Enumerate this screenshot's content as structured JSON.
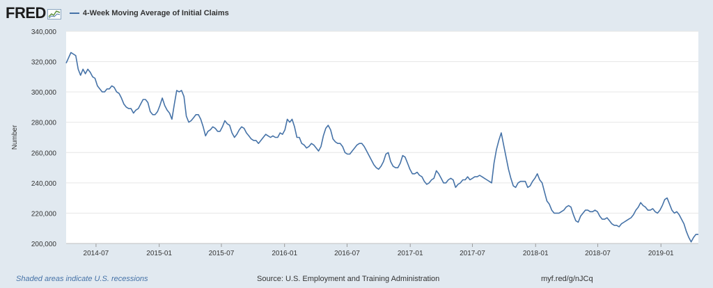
{
  "logo": {
    "text": "FRED",
    "icon": "fred-graph-icon"
  },
  "colors": {
    "series": "#4572a7",
    "background": "#e1e9f0",
    "plot": "#ffffff",
    "grid": "#e6e6e6"
  },
  "footer": {
    "recessions": "Shaded areas indicate U.S. recessions",
    "source": "Source: U.S. Employment and Training Administration",
    "link": "myf.red/g/nJCq"
  },
  "chart_data": {
    "type": "line",
    "title": "",
    "ylabel": "Number",
    "xlabel": "",
    "ylim": [
      200000,
      340000
    ],
    "xlim": [
      "2014-04-05",
      "2019-04-20"
    ],
    "yticks": [
      200000,
      220000,
      240000,
      260000,
      280000,
      300000,
      320000,
      340000
    ],
    "ytick_labels": [
      "200,000",
      "220,000",
      "240,000",
      "260,000",
      "280,000",
      "300,000",
      "320,000",
      "340,000"
    ],
    "xticks": [
      "2014-07-01",
      "2015-01-01",
      "2015-07-01",
      "2016-01-01",
      "2016-07-01",
      "2017-01-01",
      "2017-07-01",
      "2018-01-01",
      "2018-07-01",
      "2019-01-01"
    ],
    "xtick_labels": [
      "2014-07",
      "2015-01",
      "2015-07",
      "2016-01",
      "2016-07",
      "2017-01",
      "2017-07",
      "2018-01",
      "2018-07",
      "2019-01"
    ],
    "grid": true,
    "legend_position": "top-left",
    "series": [
      {
        "name": "4-Week Moving Average of Initial Claims",
        "points": [
          [
            "2014-04-05",
            319000
          ],
          [
            "2014-04-19",
            326000
          ],
          [
            "2014-05-03",
            324000
          ],
          [
            "2014-05-10",
            315000
          ],
          [
            "2014-05-17",
            311000
          ],
          [
            "2014-05-24",
            315000
          ],
          [
            "2014-05-31",
            312000
          ],
          [
            "2014-06-07",
            315000
          ],
          [
            "2014-06-14",
            313000
          ],
          [
            "2014-06-21",
            310000
          ],
          [
            "2014-06-28",
            309000
          ],
          [
            "2014-07-05",
            304000
          ],
          [
            "2014-07-12",
            302000
          ],
          [
            "2014-07-19",
            300000
          ],
          [
            "2014-07-26",
            300000
          ],
          [
            "2014-08-02",
            302000
          ],
          [
            "2014-08-09",
            302000
          ],
          [
            "2014-08-16",
            304000
          ],
          [
            "2014-08-23",
            303000
          ],
          [
            "2014-08-30",
            300000
          ],
          [
            "2014-09-06",
            299000
          ],
          [
            "2014-09-13",
            296000
          ],
          [
            "2014-09-20",
            292000
          ],
          [
            "2014-09-27",
            290000
          ],
          [
            "2014-10-04",
            289000
          ],
          [
            "2014-10-11",
            289000
          ],
          [
            "2014-10-18",
            286000
          ],
          [
            "2014-10-25",
            288000
          ],
          [
            "2014-11-01",
            289000
          ],
          [
            "2014-11-08",
            292000
          ],
          [
            "2014-11-15",
            295000
          ],
          [
            "2014-11-22",
            295000
          ],
          [
            "2014-11-29",
            293000
          ],
          [
            "2014-12-06",
            287000
          ],
          [
            "2014-12-13",
            285000
          ],
          [
            "2014-12-20",
            285000
          ],
          [
            "2014-12-27",
            287000
          ],
          [
            "2015-01-03",
            291000
          ],
          [
            "2015-01-10",
            296000
          ],
          [
            "2015-01-17",
            291000
          ],
          [
            "2015-01-24",
            288000
          ],
          [
            "2015-01-31",
            286000
          ],
          [
            "2015-02-07",
            282000
          ],
          [
            "2015-02-14",
            292000
          ],
          [
            "2015-02-21",
            301000
          ],
          [
            "2015-02-28",
            300000
          ],
          [
            "2015-03-07",
            301000
          ],
          [
            "2015-03-14",
            297000
          ],
          [
            "2015-03-21",
            284000
          ],
          [
            "2015-03-28",
            280000
          ],
          [
            "2015-04-04",
            281000
          ],
          [
            "2015-04-11",
            283000
          ],
          [
            "2015-04-18",
            285000
          ],
          [
            "2015-04-25",
            285000
          ],
          [
            "2015-05-02",
            282000
          ],
          [
            "2015-05-09",
            277000
          ],
          [
            "2015-05-16",
            271000
          ],
          [
            "2015-05-23",
            274000
          ],
          [
            "2015-05-30",
            275000
          ],
          [
            "2015-06-06",
            277000
          ],
          [
            "2015-06-13",
            276000
          ],
          [
            "2015-06-20",
            274000
          ],
          [
            "2015-06-27",
            274000
          ],
          [
            "2015-07-04",
            277000
          ],
          [
            "2015-07-11",
            281000
          ],
          [
            "2015-07-18",
            279000
          ],
          [
            "2015-07-25",
            278000
          ],
          [
            "2015-08-01",
            273000
          ],
          [
            "2015-08-08",
            270000
          ],
          [
            "2015-08-15",
            272000
          ],
          [
            "2015-08-22",
            275000
          ],
          [
            "2015-08-29",
            277000
          ],
          [
            "2015-09-05",
            276000
          ],
          [
            "2015-09-12",
            273000
          ],
          [
            "2015-09-19",
            271000
          ],
          [
            "2015-09-26",
            269000
          ],
          [
            "2015-10-03",
            268000
          ],
          [
            "2015-10-10",
            268000
          ],
          [
            "2015-10-17",
            266000
          ],
          [
            "2015-10-24",
            268000
          ],
          [
            "2015-10-31",
            270000
          ],
          [
            "2015-11-07",
            272000
          ],
          [
            "2015-11-14",
            271000
          ],
          [
            "2015-11-21",
            270000
          ],
          [
            "2015-11-28",
            271000
          ],
          [
            "2015-12-05",
            270000
          ],
          [
            "2015-12-12",
            270000
          ],
          [
            "2015-12-19",
            273000
          ],
          [
            "2015-12-26",
            272000
          ],
          [
            "2016-01-02",
            275000
          ],
          [
            "2016-01-09",
            282000
          ],
          [
            "2016-01-16",
            280000
          ],
          [
            "2016-01-23",
            282000
          ],
          [
            "2016-01-30",
            277000
          ],
          [
            "2016-02-06",
            270000
          ],
          [
            "2016-02-13",
            270000
          ],
          [
            "2016-02-20",
            266000
          ],
          [
            "2016-02-27",
            265000
          ],
          [
            "2016-03-05",
            263000
          ],
          [
            "2016-03-12",
            264000
          ],
          [
            "2016-03-19",
            266000
          ],
          [
            "2016-03-26",
            265000
          ],
          [
            "2016-04-02",
            263000
          ],
          [
            "2016-04-09",
            261000
          ],
          [
            "2016-04-16",
            264000
          ],
          [
            "2016-04-23",
            271000
          ],
          [
            "2016-04-30",
            276000
          ],
          [
            "2016-05-07",
            278000
          ],
          [
            "2016-05-14",
            275000
          ],
          [
            "2016-05-21",
            269000
          ],
          [
            "2016-05-28",
            267000
          ],
          [
            "2016-06-04",
            266000
          ],
          [
            "2016-06-11",
            266000
          ],
          [
            "2016-06-18",
            264000
          ],
          [
            "2016-06-25",
            260000
          ],
          [
            "2016-07-02",
            259000
          ],
          [
            "2016-07-09",
            259000
          ],
          [
            "2016-07-16",
            261000
          ],
          [
            "2016-07-23",
            263000
          ],
          [
            "2016-07-30",
            265000
          ],
          [
            "2016-08-06",
            266000
          ],
          [
            "2016-08-13",
            266000
          ],
          [
            "2016-08-20",
            264000
          ],
          [
            "2016-08-27",
            261000
          ],
          [
            "2016-09-03",
            258000
          ],
          [
            "2016-09-10",
            255000
          ],
          [
            "2016-09-17",
            252000
          ],
          [
            "2016-09-24",
            250000
          ],
          [
            "2016-10-01",
            249000
          ],
          [
            "2016-10-08",
            251000
          ],
          [
            "2016-10-15",
            254000
          ],
          [
            "2016-10-22",
            259000
          ],
          [
            "2016-10-29",
            260000
          ],
          [
            "2016-11-05",
            254000
          ],
          [
            "2016-11-12",
            251000
          ],
          [
            "2016-11-19",
            250000
          ],
          [
            "2016-11-26",
            250000
          ],
          [
            "2016-12-03",
            253000
          ],
          [
            "2016-12-10",
            258000
          ],
          [
            "2016-12-17",
            257000
          ],
          [
            "2016-12-24",
            253000
          ],
          [
            "2016-12-31",
            249000
          ],
          [
            "2017-01-07",
            246000
          ],
          [
            "2017-01-14",
            246000
          ],
          [
            "2017-01-21",
            247000
          ],
          [
            "2017-01-28",
            245000
          ],
          [
            "2017-02-04",
            244000
          ],
          [
            "2017-02-11",
            241000
          ],
          [
            "2017-02-18",
            239000
          ],
          [
            "2017-02-25",
            240000
          ],
          [
            "2017-03-04",
            242000
          ],
          [
            "2017-03-11",
            243000
          ],
          [
            "2017-03-18",
            248000
          ],
          [
            "2017-03-25",
            246000
          ],
          [
            "2017-04-01",
            243000
          ],
          [
            "2017-04-08",
            240000
          ],
          [
            "2017-04-15",
            240000
          ],
          [
            "2017-04-22",
            242000
          ],
          [
            "2017-04-29",
            243000
          ],
          [
            "2017-05-06",
            242000
          ],
          [
            "2017-05-13",
            237000
          ],
          [
            "2017-05-20",
            239000
          ],
          [
            "2017-05-27",
            240000
          ],
          [
            "2017-06-03",
            242000
          ],
          [
            "2017-06-10",
            242000
          ],
          [
            "2017-06-17",
            244000
          ],
          [
            "2017-06-24",
            242000
          ],
          [
            "2017-07-01",
            243000
          ],
          [
            "2017-07-08",
            244000
          ],
          [
            "2017-07-15",
            244000
          ],
          [
            "2017-07-22",
            245000
          ],
          [
            "2017-07-29",
            244000
          ],
          [
            "2017-08-05",
            243000
          ],
          [
            "2017-08-12",
            242000
          ],
          [
            "2017-08-19",
            241000
          ],
          [
            "2017-08-26",
            240000
          ],
          [
            "2017-09-02",
            253000
          ],
          [
            "2017-09-09",
            262000
          ],
          [
            "2017-09-16",
            268000
          ],
          [
            "2017-09-23",
            273000
          ],
          [
            "2017-09-30",
            265000
          ],
          [
            "2017-10-07",
            257000
          ],
          [
            "2017-10-14",
            249000
          ],
          [
            "2017-10-21",
            243000
          ],
          [
            "2017-10-28",
            238000
          ],
          [
            "2017-11-04",
            237000
          ],
          [
            "2017-11-11",
            240000
          ],
          [
            "2017-11-18",
            241000
          ],
          [
            "2017-11-25",
            241000
          ],
          [
            "2017-12-02",
            241000
          ],
          [
            "2017-12-09",
            237000
          ],
          [
            "2017-12-16",
            238000
          ],
          [
            "2017-12-23",
            241000
          ],
          [
            "2017-12-30",
            243000
          ],
          [
            "2018-01-06",
            246000
          ],
          [
            "2018-01-13",
            242000
          ],
          [
            "2018-01-20",
            240000
          ],
          [
            "2018-01-27",
            234000
          ],
          [
            "2018-02-03",
            228000
          ],
          [
            "2018-02-10",
            226000
          ],
          [
            "2018-02-17",
            222000
          ],
          [
            "2018-02-24",
            220000
          ],
          [
            "2018-03-03",
            220000
          ],
          [
            "2018-03-10",
            220000
          ],
          [
            "2018-03-17",
            221000
          ],
          [
            "2018-03-24",
            222000
          ],
          [
            "2018-03-31",
            224000
          ],
          [
            "2018-04-07",
            225000
          ],
          [
            "2018-04-14",
            224000
          ],
          [
            "2018-04-21",
            219000
          ],
          [
            "2018-04-28",
            215000
          ],
          [
            "2018-05-05",
            214000
          ],
          [
            "2018-05-12",
            218000
          ],
          [
            "2018-05-19",
            220000
          ],
          [
            "2018-05-26",
            222000
          ],
          [
            "2018-06-02",
            222000
          ],
          [
            "2018-06-09",
            221000
          ],
          [
            "2018-06-16",
            221000
          ],
          [
            "2018-06-23",
            222000
          ],
          [
            "2018-06-30",
            221000
          ],
          [
            "2018-07-07",
            218000
          ],
          [
            "2018-07-14",
            216000
          ],
          [
            "2018-07-21",
            216000
          ],
          [
            "2018-07-28",
            217000
          ],
          [
            "2018-08-04",
            215000
          ],
          [
            "2018-08-11",
            213000
          ],
          [
            "2018-08-18",
            212000
          ],
          [
            "2018-08-25",
            212000
          ],
          [
            "2018-09-01",
            211000
          ],
          [
            "2018-09-08",
            213000
          ],
          [
            "2018-09-15",
            214000
          ],
          [
            "2018-09-22",
            215000
          ],
          [
            "2018-09-29",
            216000
          ],
          [
            "2018-10-06",
            217000
          ],
          [
            "2018-10-13",
            219000
          ],
          [
            "2018-10-20",
            222000
          ],
          [
            "2018-10-27",
            224000
          ],
          [
            "2018-11-03",
            227000
          ],
          [
            "2018-11-10",
            225000
          ],
          [
            "2018-11-17",
            224000
          ],
          [
            "2018-11-24",
            222000
          ],
          [
            "2018-12-01",
            222000
          ],
          [
            "2018-12-08",
            223000
          ],
          [
            "2018-12-15",
            221000
          ],
          [
            "2018-12-22",
            220000
          ],
          [
            "2018-12-29",
            222000
          ],
          [
            "2019-01-05",
            225000
          ],
          [
            "2019-01-12",
            229000
          ],
          [
            "2019-01-19",
            230000
          ],
          [
            "2019-01-26",
            226000
          ],
          [
            "2019-02-02",
            222000
          ],
          [
            "2019-02-09",
            220000
          ],
          [
            "2019-02-16",
            221000
          ],
          [
            "2019-02-23",
            219000
          ],
          [
            "2019-03-02",
            216000
          ],
          [
            "2019-03-09",
            213000
          ],
          [
            "2019-03-16",
            208000
          ],
          [
            "2019-03-23",
            204000
          ],
          [
            "2019-03-30",
            201000
          ],
          [
            "2019-04-06",
            204000
          ],
          [
            "2019-04-13",
            206000
          ],
          [
            "2019-04-20",
            206000
          ]
        ]
      }
    ]
  }
}
